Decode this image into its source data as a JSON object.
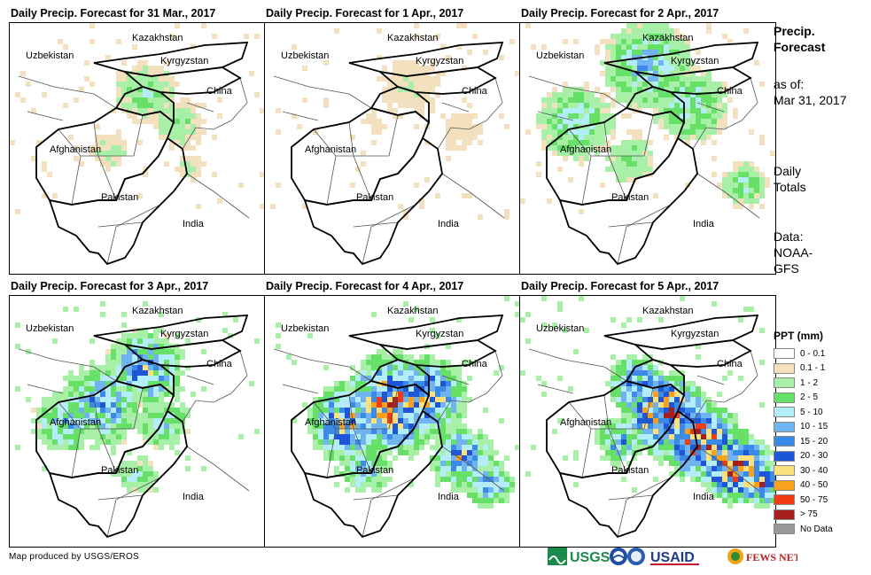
{
  "panels": [
    {
      "title": "Daily Precip. Forecast for 31 Mar., 2017",
      "intensity": 1
    },
    {
      "title": "Daily Precip. Forecast for 1 Apr., 2017",
      "intensity": 0
    },
    {
      "title": "Daily Precip. Forecast for 2 Apr., 2017",
      "intensity": 2
    },
    {
      "title": "Daily Precip. Forecast for 3 Apr., 2017",
      "intensity": 3
    },
    {
      "title": "Daily Precip. Forecast for 4 Apr., 2017",
      "intensity": 4
    },
    {
      "title": "Daily Precip. Forecast for 5 Apr., 2017",
      "intensity": 5
    }
  ],
  "map_labels": {
    "kazakhstan": "Kazakhstan",
    "uzbekistan": "Uzbekistan",
    "kyrgyzstan": "Kyrgyzstan",
    "china": "China",
    "afghanistan": "Afghanistan",
    "pakistan": "Pakistan",
    "india": "India"
  },
  "side": {
    "title_line1": "Precip.",
    "title_line2": "Forecast",
    "asof_line1": "as of:",
    "asof_line2": "Mar 31, 2017",
    "daily_line1": "Daily",
    "daily_line2": "Totals",
    "data_line1": "Data:",
    "data_line2": "NOAA-",
    "data_line3": "GFS"
  },
  "legend": {
    "title": "PPT (mm)",
    "items": [
      {
        "label": "0 - 0.1",
        "color": "#ffffff"
      },
      {
        "label": "0.1 - 1",
        "color": "#f2e0bf"
      },
      {
        "label": "1 - 2",
        "color": "#a8f0a8"
      },
      {
        "label": "2 - 5",
        "color": "#66e066"
      },
      {
        "label": "5 - 10",
        "color": "#b3eef8"
      },
      {
        "label": "10 - 15",
        "color": "#6fb4f0"
      },
      {
        "label": "15 - 20",
        "color": "#3b8ae8"
      },
      {
        "label": "20 - 30",
        "color": "#1e56d8"
      },
      {
        "label": "30 - 40",
        "color": "#fce07a"
      },
      {
        "label": "40 - 50",
        "color": "#f7a11c"
      },
      {
        "label": "50 - 75",
        "color": "#f03c10"
      },
      {
        "label": "> 75",
        "color": "#a61f1f"
      },
      {
        "label": "No Data",
        "color": "#999999"
      }
    ]
  },
  "credit": "Map produced by USGS/EROS",
  "logos": {
    "usgs": "USGS",
    "usaid": "USAID",
    "fewsnet": "FEWS NET"
  }
}
